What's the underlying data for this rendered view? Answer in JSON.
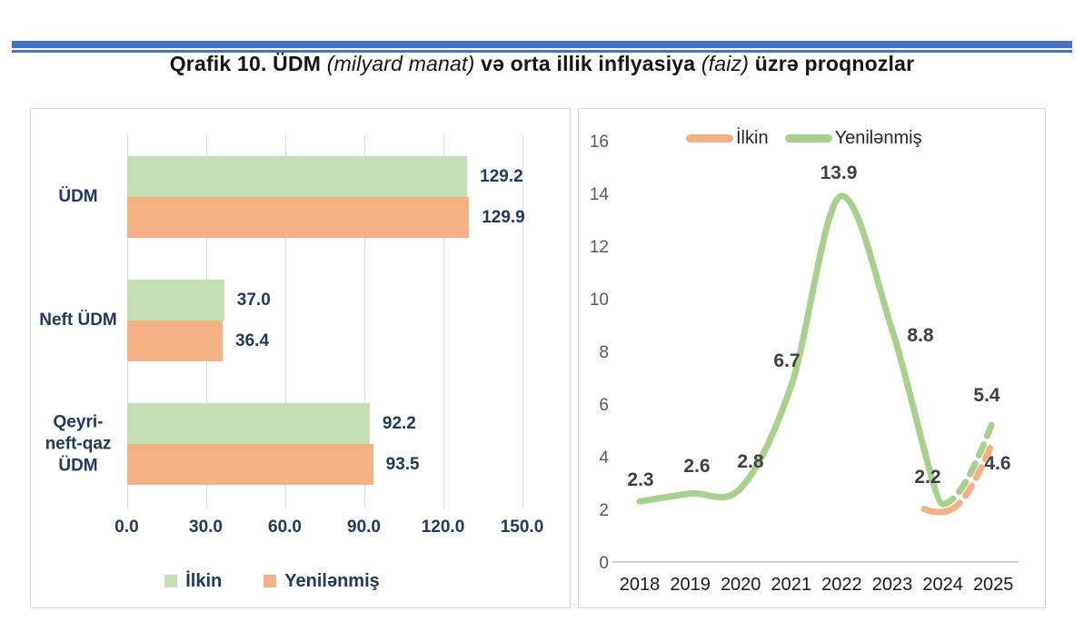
{
  "title": {
    "part1": "Qrafik 10. ÜDM ",
    "part2": "(milyard manat)",
    "part3": " və orta illik inflyasiya ",
    "part4": "(faiz)",
    "part5": " üzrə proqnozlar"
  },
  "colors": {
    "bar_green": "#C5E0B4",
    "bar_orange": "#F4B183",
    "line_green": "#A9D18E",
    "line_orange": "#F4B183",
    "navy_text": "#1F3864",
    "axis_gray_text": "#595959",
    "data_label_gray": "#404040",
    "gridline": "#D9D9D9",
    "top_rule_blue": "#4472C4"
  },
  "chart_data": [
    {
      "type": "bar",
      "orientation": "horizontal",
      "categories": [
        "ÜDM",
        "Neft ÜDM",
        "Qeyri-\nneft-qaz\nÜDM"
      ],
      "series": [
        {
          "name": "İlkin",
          "color": "#C5E0B4",
          "values": [
            129.2,
            37.0,
            92.2
          ],
          "labels": [
            "129.2",
            "37.0",
            "92.2"
          ]
        },
        {
          "name": "Yenilənmiş",
          "color": "#F4B183",
          "values": [
            129.9,
            36.4,
            93.5
          ],
          "labels": [
            "129.9",
            "36.4",
            "93.5"
          ]
        }
      ],
      "xlim": [
        0,
        150
      ],
      "xticks": [
        {
          "v": 0,
          "label": "0.0"
        },
        {
          "v": 30,
          "label": "30.0"
        },
        {
          "v": 60,
          "label": "60.0"
        },
        {
          "v": 90,
          "label": "90.0"
        },
        {
          "v": 120,
          "label": "120.0"
        },
        {
          "v": 150,
          "label": "150.0"
        }
      ],
      "grid": true,
      "legend_position": "bottom"
    },
    {
      "type": "line",
      "x": [
        2018,
        2019,
        2020,
        2021,
        2022,
        2023,
        2024,
        2025
      ],
      "series": [
        {
          "name": "İlkin",
          "color": "#F4B183",
          "values": [
            null,
            null,
            null,
            null,
            null,
            null,
            2.0,
            4.6
          ],
          "dashed_forecast_from": 2024,
          "labels": [
            null,
            null,
            null,
            null,
            null,
            null,
            null,
            "4.6"
          ]
        },
        {
          "name": "Yenilənmiş",
          "color": "#A9D18E",
          "values": [
            2.3,
            2.6,
            2.8,
            6.7,
            13.9,
            8.8,
            2.2,
            5.4
          ],
          "dashed_forecast_from": 2024,
          "labels": [
            "2.3",
            "2.6",
            "2.8",
            "6.7",
            "13.9",
            "8.8",
            "2.2",
            "5.4"
          ]
        }
      ],
      "ylim": [
        0,
        16
      ],
      "yticks": [
        0,
        2,
        4,
        6,
        8,
        10,
        12,
        14,
        16
      ],
      "grid": false,
      "legend_position": "top"
    }
  ]
}
